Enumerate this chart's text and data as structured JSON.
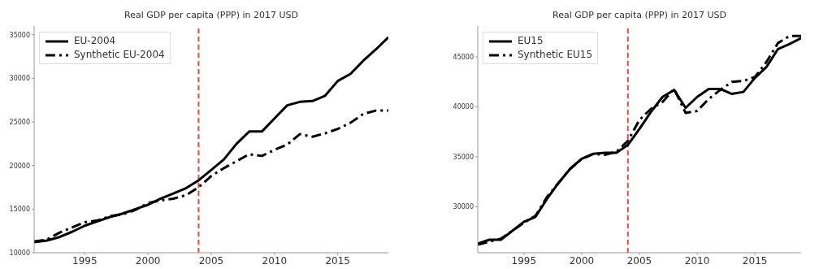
{
  "chart_data": [
    {
      "type": "line",
      "title": "Real GDP per capita (PPP) in 2017 USD",
      "x": [
        1991,
        1992,
        1993,
        1994,
        1995,
        1996,
        1997,
        1998,
        1999,
        2000,
        2001,
        2002,
        2003,
        2004,
        2005,
        2006,
        2007,
        2008,
        2009,
        2010,
        2011,
        2012,
        2013,
        2014,
        2015,
        2016,
        2017,
        2018,
        2019
      ],
      "xlim": [
        1991,
        2019
      ],
      "xticks": [
        1995,
        2000,
        2005,
        2010,
        2015
      ],
      "ylim": [
        10000,
        36000
      ],
      "yticks": [
        10000,
        15000,
        20000,
        25000,
        30000,
        35000
      ],
      "grid": false,
      "legend": "top left",
      "marker": "none",
      "series": [
        {
          "name": "EU-2004",
          "color": "#000000",
          "line_style": "solid",
          "values": [
            11200,
            11400,
            11800,
            12400,
            13100,
            13600,
            14100,
            14500,
            15000,
            15500,
            16200,
            16800,
            17400,
            18300,
            19500,
            20700,
            22500,
            23900,
            23900,
            25400,
            26900,
            27300,
            27400,
            28000,
            29700,
            30500,
            32000,
            33300,
            34700
          ]
        },
        {
          "name": "Synthetic EU-2004",
          "color": "#000000",
          "line_style": "dashed",
          "values": [
            11300,
            11500,
            12300,
            12900,
            13500,
            13700,
            14200,
            14400,
            14900,
            15700,
            16000,
            16200,
            16600,
            17500,
            18800,
            19700,
            20500,
            21300,
            21100,
            21800,
            22400,
            23600,
            23300,
            23700,
            24200,
            24900,
            25900,
            26300,
            26300
          ]
        }
      ],
      "ref_lines": [
        {
          "axis": "x",
          "value": 2004,
          "color": "#e8473a",
          "line_style": "dashed"
        }
      ]
    },
    {
      "type": "line",
      "title": "Real GDP per capita (PPP) in 2017 USD",
      "x": [
        1991,
        1992,
        1993,
        1994,
        1995,
        1996,
        1997,
        1998,
        1999,
        2000,
        2001,
        2002,
        2003,
        2004,
        2005,
        2006,
        2007,
        2008,
        2009,
        2010,
        2011,
        2012,
        2013,
        2014,
        2015,
        2016,
        2017,
        2018,
        2019
      ],
      "xlim": [
        1991,
        2019
      ],
      "xticks": [
        1995,
        2000,
        2005,
        2010,
        2015
      ],
      "ylim": [
        25400,
        48100
      ],
      "yticks": [
        30000,
        35000,
        40000,
        45000
      ],
      "grid": false,
      "legend": "top left",
      "marker": "none",
      "series": [
        {
          "name": "EU15",
          "color": "#000000",
          "line_style": "solid",
          "values": [
            26300,
            26700,
            26700,
            27600,
            28500,
            29000,
            30800,
            32400,
            33800,
            34800,
            35300,
            35400,
            35400,
            36200,
            37800,
            39500,
            41000,
            41700,
            39900,
            41000,
            41800,
            41800,
            41300,
            41500,
            42900,
            44000,
            45800,
            46300,
            46900
          ]
        },
        {
          "name": "Synthetic EU15",
          "color": "#000000",
          "line_style": "dashed",
          "values": [
            26200,
            26500,
            26800,
            27600,
            28400,
            29100,
            31000,
            32400,
            33800,
            34800,
            35300,
            35200,
            35500,
            36600,
            38700,
            39800,
            40500,
            41800,
            39400,
            39600,
            40800,
            41700,
            42500,
            42600,
            43000,
            44500,
            46400,
            47100,
            47100
          ]
        }
      ],
      "ref_lines": [
        {
          "axis": "x",
          "value": 2004,
          "color": "#e8473a",
          "line_style": "dashed"
        }
      ]
    }
  ]
}
